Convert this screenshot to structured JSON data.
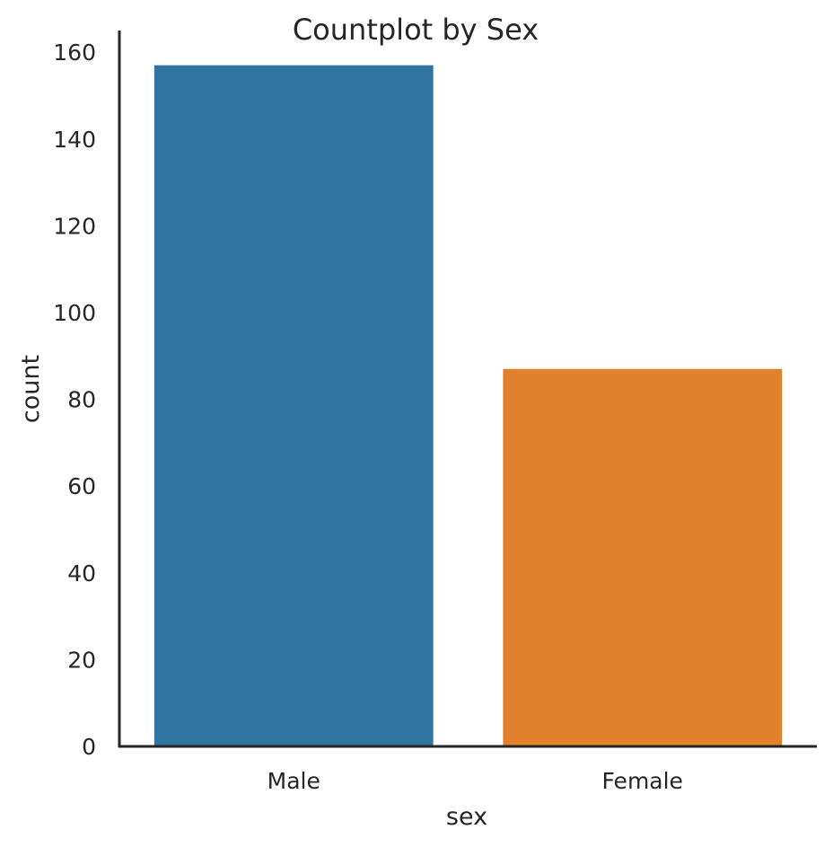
{
  "chart_data": {
    "type": "bar",
    "title": "Countplot by Sex",
    "xlabel": "sex",
    "ylabel": "count",
    "categories": [
      "Male",
      "Female"
    ],
    "values": [
      157,
      87
    ],
    "colors": [
      "#3274a1",
      "#e1812c"
    ],
    "ylim": [
      0,
      165
    ],
    "yticks": [
      0,
      20,
      40,
      60,
      80,
      100,
      120,
      140,
      160
    ],
    "ytick_labels": [
      "0",
      "20",
      "40",
      "60",
      "80",
      "100",
      "120",
      "140",
      "160"
    ],
    "grid": false,
    "axis_color": "#262626"
  }
}
